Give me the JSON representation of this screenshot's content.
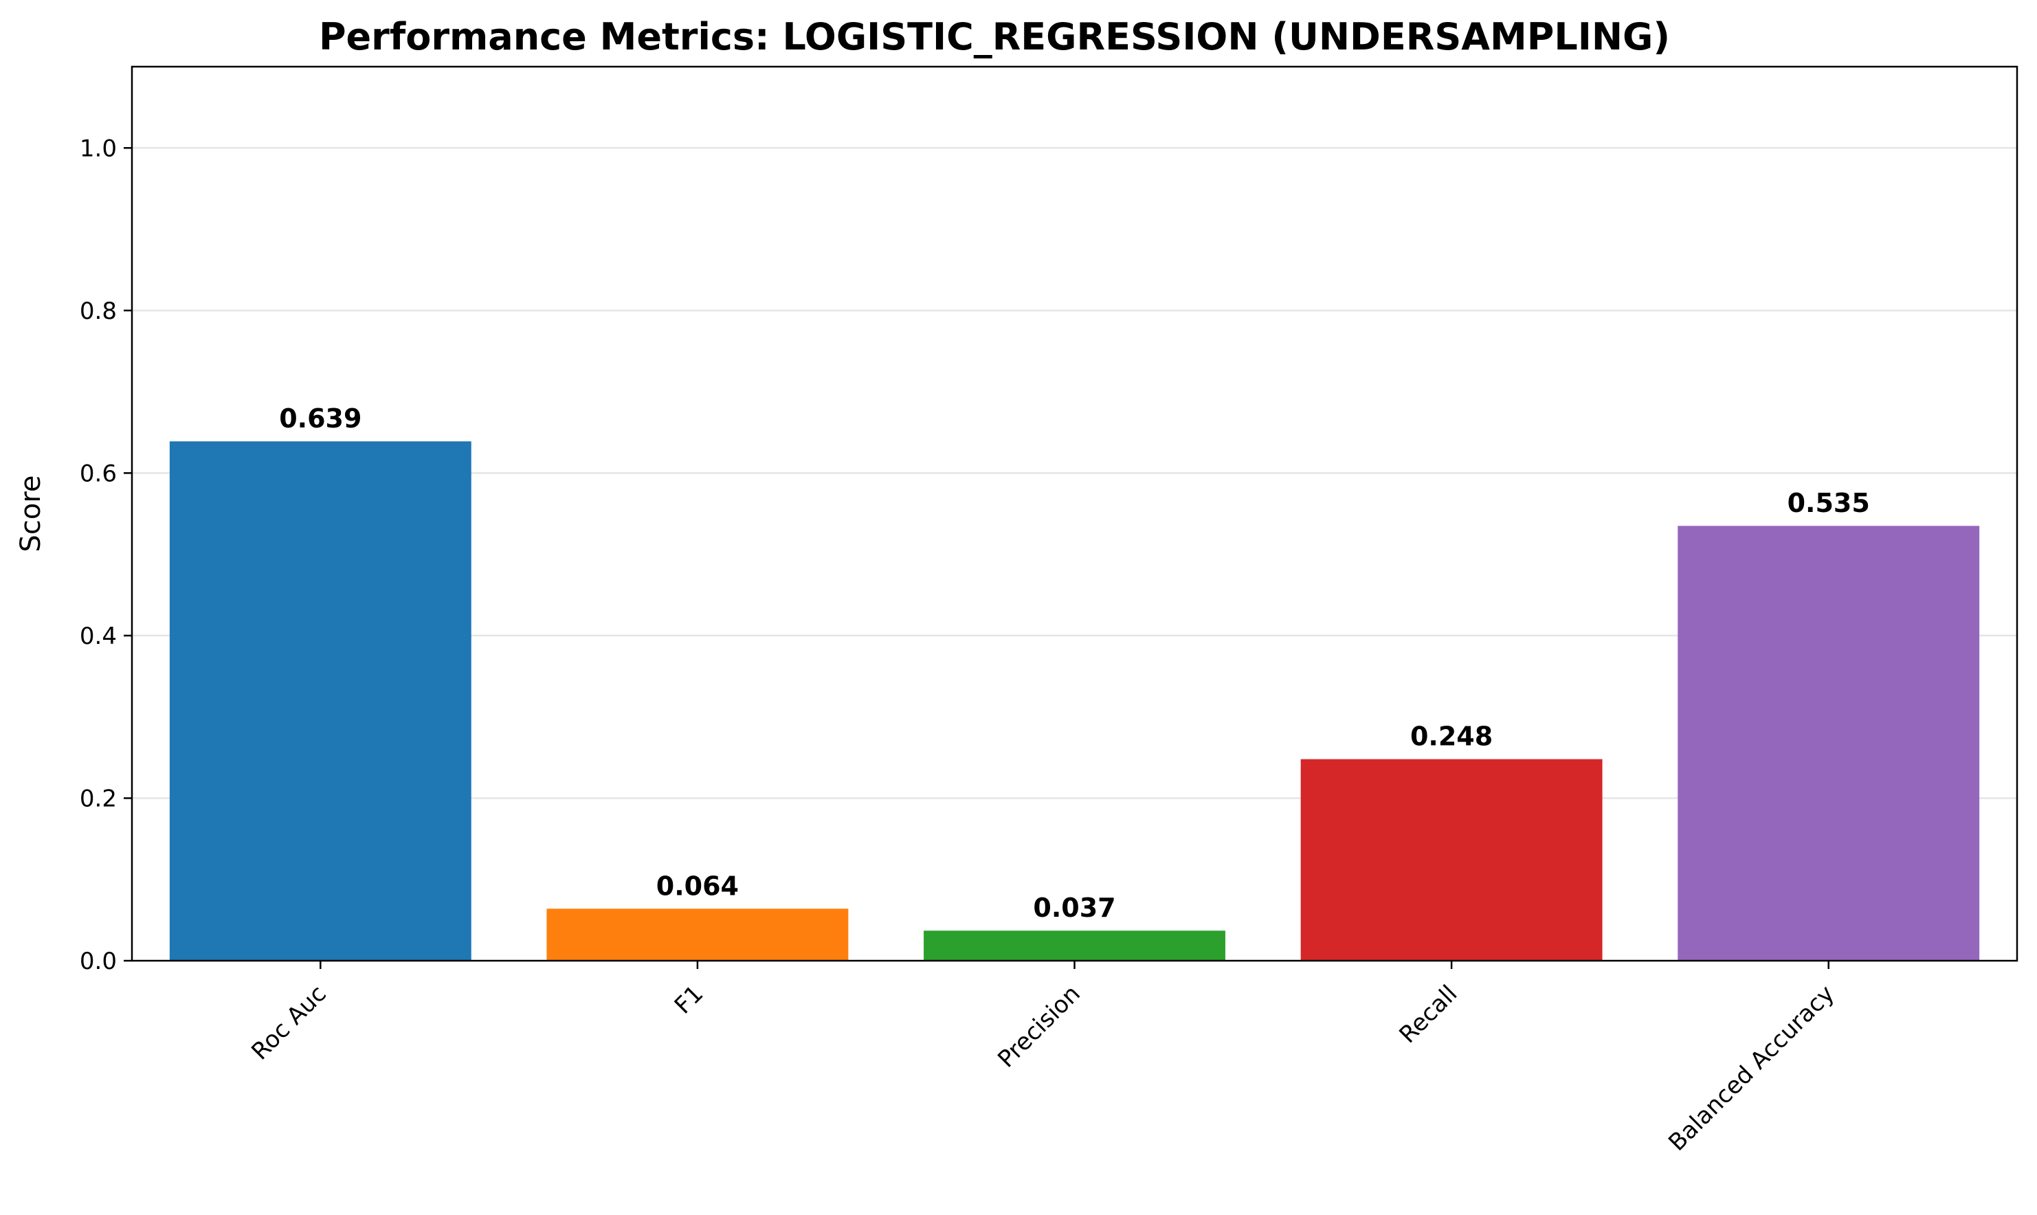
{
  "chart_data": {
    "type": "bar",
    "title": "Performance Metrics: LOGISTIC_REGRESSION (UNDERSAMPLING)",
    "xlabel": "",
    "ylabel": "Score",
    "categories": [
      "Roc Auc",
      "F1",
      "Precision",
      "Recall",
      "Balanced Accuracy"
    ],
    "values": [
      0.639,
      0.064,
      0.037,
      0.248,
      0.535
    ],
    "value_labels": [
      "0.639",
      "0.064",
      "0.037",
      "0.248",
      "0.535"
    ],
    "colors": [
      "#1f77b4",
      "#ff7f0e",
      "#2ca02c",
      "#d62728",
      "#9467bd"
    ],
    "ylim": [
      0,
      1.1
    ],
    "yticks": [
      0.0,
      0.2,
      0.4,
      0.6,
      0.8,
      1.0
    ],
    "ytick_labels": [
      "0.0",
      "0.2",
      "0.4",
      "0.6",
      "0.8",
      "1.0"
    ],
    "grid": "horizontal",
    "grid_color": "#e5e5e5",
    "xtick_rotation_deg": 45,
    "legend": "none"
  }
}
